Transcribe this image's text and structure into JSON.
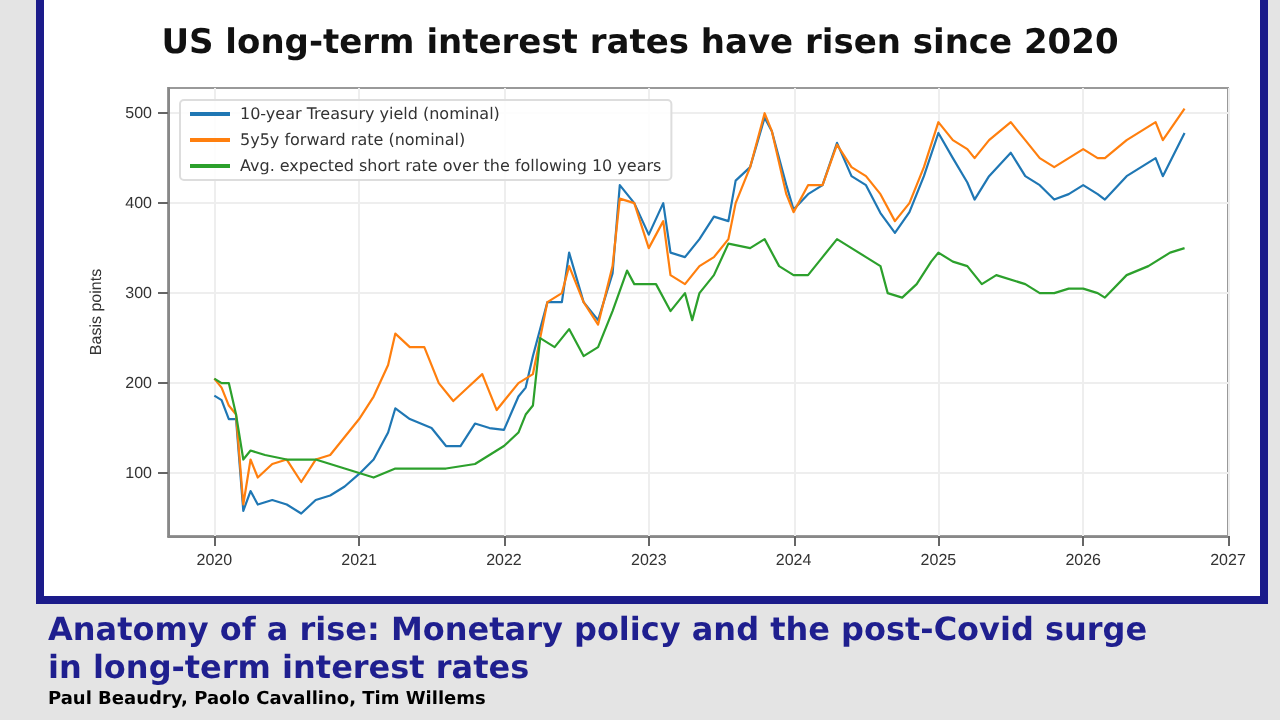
{
  "chart_data": {
    "type": "line",
    "title": "US long-term interest rates have risen since 2020",
    "ylabel": "Basis points",
    "xlim": [
      2019.68,
      2027
    ],
    "xticks": [
      2020,
      2021,
      2022,
      2023,
      2024,
      2025,
      2026,
      2027
    ],
    "ylim": [
      30,
      528
    ],
    "yticks": [
      100,
      200,
      300,
      400,
      500
    ],
    "grid": true,
    "legend": "top left",
    "marker": "none",
    "line_style": "solid",
    "annotations": [
      "Anatomy of a rise: Monetary policy and the post-Covid surge in long-term interest rates",
      "Paul Beaudry, Paolo Cavallino, Tim Willems"
    ],
    "series": [
      {
        "name": "10-year Treasury yield (nominal)",
        "color": "#1f77b4",
        "x": [
          2020.0,
          2020.05,
          2020.1,
          2020.15,
          2020.2,
          2020.25,
          2020.3,
          2020.4,
          2020.5,
          2020.6,
          2020.7,
          2020.8,
          2020.9,
          2021.0,
          2021.1,
          2021.2,
          2021.25,
          2021.35,
          2021.5,
          2021.6,
          2021.7,
          2021.8,
          2021.9,
          2022.0,
          2022.1,
          2022.15,
          2022.2,
          2022.3,
          2022.4,
          2022.45,
          2022.55,
          2022.65,
          2022.75,
          2022.8,
          2022.9,
          2023.0,
          2023.1,
          2023.15,
          2023.25,
          2023.35,
          2023.45,
          2023.55,
          2023.6,
          2023.7,
          2023.8,
          2023.85,
          2023.95,
          2024.0,
          2024.1,
          2024.2,
          2024.3,
          2024.4,
          2024.5,
          2024.6,
          2024.7,
          2024.8,
          2024.9,
          2025.0,
          2025.1,
          2025.2,
          2025.25,
          2025.35,
          2025.5,
          2025.6,
          2025.7,
          2025.8,
          2025.9,
          2026.0,
          2026.1,
          2026.15,
          2026.3,
          2026.4,
          2026.5,
          2026.55,
          2026.7
        ],
        "values": [
          186,
          181,
          160,
          160,
          58,
          80,
          65,
          70,
          65,
          55,
          70,
          75,
          85,
          99,
          115,
          145,
          172,
          160,
          150,
          130,
          130,
          155,
          150,
          148,
          185,
          195,
          230,
          290,
          290,
          345,
          290,
          270,
          322,
          420,
          400,
          365,
          400,
          345,
          340,
          360,
          385,
          380,
          425,
          440,
          495,
          480,
          420,
          393,
          410,
          420,
          467,
          430,
          420,
          389,
          367,
          390,
          430,
          478,
          450,
          423,
          404,
          430,
          456,
          430,
          420,
          404,
          410,
          420,
          410,
          404,
          430,
          440,
          450,
          430,
          478
        ]
      },
      {
        "name": "5y5y forward rate (nominal)",
        "color": "#ff7f0e",
        "x": [
          2020.0,
          2020.05,
          2020.1,
          2020.15,
          2020.2,
          2020.25,
          2020.3,
          2020.4,
          2020.5,
          2020.6,
          2020.7,
          2020.8,
          2020.9,
          2021.0,
          2021.1,
          2021.2,
          2021.25,
          2021.35,
          2021.45,
          2021.55,
          2021.65,
          2021.75,
          2021.85,
          2021.95,
          2022.0,
          2022.1,
          2022.2,
          2022.3,
          2022.4,
          2022.45,
          2022.55,
          2022.65,
          2022.75,
          2022.8,
          2022.9,
          2023.0,
          2023.1,
          2023.15,
          2023.25,
          2023.35,
          2023.45,
          2023.55,
          2023.6,
          2023.7,
          2023.8,
          2023.85,
          2023.95,
          2024.0,
          2024.1,
          2024.2,
          2024.3,
          2024.4,
          2024.5,
          2024.6,
          2024.7,
          2024.8,
          2024.9,
          2025.0,
          2025.1,
          2025.2,
          2025.25,
          2025.35,
          2025.5,
          2025.6,
          2025.7,
          2025.8,
          2025.9,
          2026.0,
          2026.1,
          2026.15,
          2026.3,
          2026.4,
          2026.5,
          2026.55,
          2026.7
        ],
        "values": [
          205,
          195,
          175,
          165,
          65,
          115,
          95,
          110,
          115,
          90,
          115,
          120,
          140,
          160,
          185,
          220,
          255,
          240,
          240,
          200,
          180,
          195,
          210,
          170,
          180,
          200,
          210,
          290,
          300,
          330,
          290,
          265,
          330,
          405,
          400,
          350,
          380,
          320,
          310,
          330,
          340,
          360,
          400,
          440,
          500,
          480,
          410,
          390,
          420,
          420,
          465,
          440,
          430,
          410,
          380,
          400,
          440,
          490,
          470,
          460,
          450,
          470,
          490,
          470,
          450,
          440,
          450,
          460,
          450,
          450,
          470,
          480,
          490,
          470,
          505
        ]
      },
      {
        "name": "Avg. expected short rate over the following 10 years",
        "color": "#2ca02c",
        "x": [
          2020.0,
          2020.05,
          2020.1,
          2020.15,
          2020.2,
          2020.25,
          2020.35,
          2020.5,
          2020.7,
          2020.9,
          2021.0,
          2021.1,
          2021.25,
          2021.4,
          2021.6,
          2021.8,
          2021.9,
          2022.0,
          2022.1,
          2022.15,
          2022.2,
          2022.25,
          2022.35,
          2022.45,
          2022.55,
          2022.65,
          2022.75,
          2022.85,
          2022.9,
          2023.0,
          2023.05,
          2023.15,
          2023.25,
          2023.3,
          2023.35,
          2023.45,
          2023.55,
          2023.7,
          2023.8,
          2023.9,
          2024.0,
          2024.1,
          2024.2,
          2024.3,
          2024.4,
          2024.5,
          2024.6,
          2024.65,
          2024.75,
          2024.85,
          2024.95,
          2025.0,
          2025.1,
          2025.2,
          2025.3,
          2025.4,
          2025.6,
          2025.7,
          2025.8,
          2025.9,
          2026.0,
          2026.1,
          2026.15,
          2026.3,
          2026.45,
          2026.6,
          2026.7
        ],
        "values": [
          205,
          200,
          200,
          165,
          115,
          125,
          120,
          115,
          115,
          105,
          100,
          95,
          105,
          105,
          105,
          110,
          120,
          130,
          145,
          165,
          175,
          250,
          240,
          260,
          230,
          240,
          280,
          325,
          310,
          310,
          310,
          280,
          300,
          270,
          300,
          320,
          355,
          350,
          360,
          330,
          320,
          320,
          340,
          360,
          350,
          340,
          330,
          300,
          295,
          310,
          335,
          345,
          335,
          330,
          310,
          320,
          310,
          300,
          300,
          305,
          305,
          300,
          295,
          320,
          330,
          345,
          350
        ]
      }
    ]
  }
}
